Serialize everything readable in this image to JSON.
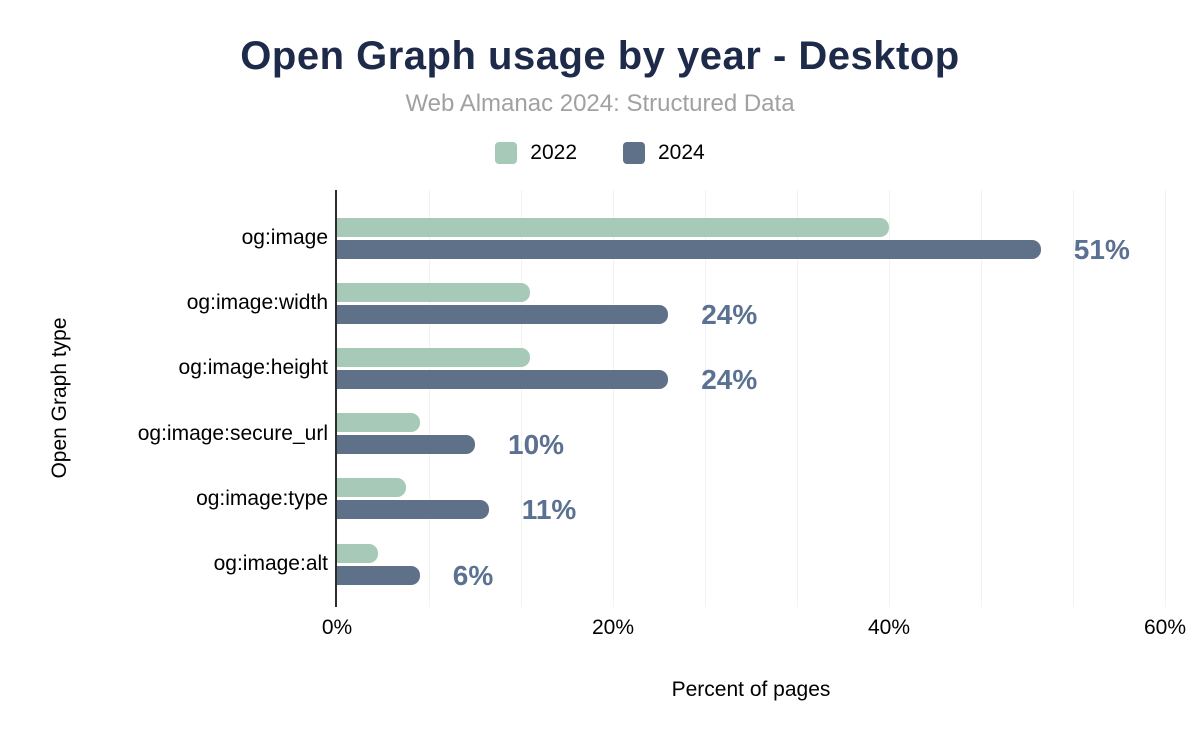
{
  "title": "Open Graph usage by year - Desktop",
  "subtitle": "Web Almanac 2024: Structured Data",
  "colors": {
    "title": "#1e2a49",
    "subtitle": "#a1a1a1",
    "series_2022": "#a6cab7",
    "series_2024": "#5e7189",
    "data_label": "#5b7191",
    "axis_line": "#2d2d2d",
    "gridline": "#f1f3f3",
    "text": "#000000"
  },
  "chart_data": {
    "type": "bar",
    "orientation": "horizontal",
    "title": "Open Graph usage by year - Desktop",
    "subtitle": "Web Almanac 2024: Structured Data",
    "categories": [
      "og:image",
      "og:image:width",
      "og:image:height",
      "og:image:secure_url",
      "og:image:type",
      "og:image:alt"
    ],
    "series": [
      {
        "name": "2022",
        "color": "#a6cab7",
        "values": [
          40,
          14,
          14,
          6,
          5,
          3
        ],
        "labels_shown": false
      },
      {
        "name": "2024",
        "color": "#5e7189",
        "values": [
          51,
          24,
          24,
          10,
          11,
          6
        ],
        "labels_shown": true,
        "data_labels": [
          "51%",
          "24%",
          "24%",
          "10%",
          "11%",
          "6%"
        ]
      }
    ],
    "xlabel": "Percent of pages",
    "ylabel": "Open Graph type",
    "xlim": [
      0,
      60
    ],
    "x_ticks": [
      "0%",
      "20%",
      "40%",
      "60%"
    ],
    "x_tick_values": [
      0,
      20,
      40,
      60
    ],
    "grid": "vertical, minor gridlines at thirds of 20% intervals",
    "legend_position": "top-center"
  }
}
